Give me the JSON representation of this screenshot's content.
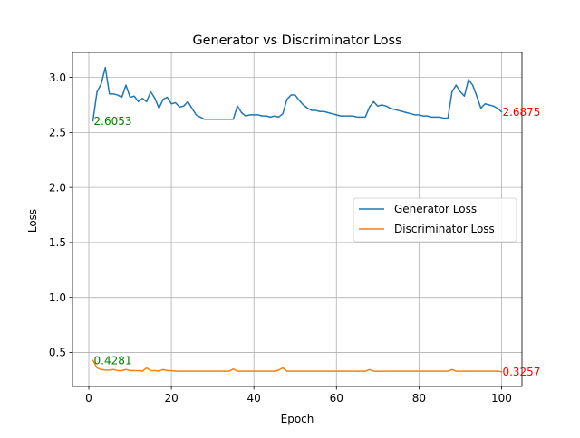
{
  "chart_data": {
    "type": "line",
    "title": "Generator vs Discriminator Loss",
    "xlabel": "Epoch",
    "ylabel": "Loss",
    "xlim": [
      -3.95,
      104.95
    ],
    "ylim": [
      0.191,
      3.227
    ],
    "xticks": [
      0,
      20,
      40,
      60,
      80,
      100
    ],
    "yticks": [
      0.5,
      1.0,
      1.5,
      2.0,
      2.5,
      3.0
    ],
    "xtick_labels": [
      "0",
      "20",
      "40",
      "60",
      "80",
      "100"
    ],
    "ytick_labels": [
      "0.5",
      "1.0",
      "1.5",
      "2.0",
      "2.5",
      "3.0"
    ],
    "grid": true,
    "legend_position": "center-right",
    "x": [
      1,
      2,
      3,
      4,
      5,
      6,
      7,
      8,
      9,
      10,
      11,
      12,
      13,
      14,
      15,
      16,
      17,
      18,
      19,
      20,
      21,
      22,
      23,
      24,
      25,
      26,
      27,
      28,
      29,
      30,
      31,
      32,
      33,
      34,
      35,
      36,
      37,
      38,
      39,
      40,
      41,
      42,
      43,
      44,
      45,
      46,
      47,
      48,
      49,
      50,
      51,
      52,
      53,
      54,
      55,
      56,
      57,
      58,
      59,
      60,
      61,
      62,
      63,
      64,
      65,
      66,
      67,
      68,
      69,
      70,
      71,
      72,
      73,
      74,
      75,
      76,
      77,
      78,
      79,
      80,
      81,
      82,
      83,
      84,
      85,
      86,
      87,
      88,
      89,
      90,
      91,
      92,
      93,
      94,
      95,
      96,
      97,
      98,
      99,
      100
    ],
    "series": [
      {
        "name": "Generator Loss",
        "color": "#1f77b4",
        "values": [
          2.6053,
          2.87,
          2.94,
          3.09,
          2.85,
          2.85,
          2.84,
          2.82,
          2.93,
          2.82,
          2.83,
          2.78,
          2.81,
          2.78,
          2.87,
          2.81,
          2.72,
          2.8,
          2.82,
          2.76,
          2.77,
          2.73,
          2.74,
          2.78,
          2.72,
          2.66,
          2.64,
          2.62,
          2.62,
          2.62,
          2.62,
          2.62,
          2.62,
          2.62,
          2.62,
          2.74,
          2.68,
          2.65,
          2.66,
          2.66,
          2.66,
          2.65,
          2.65,
          2.64,
          2.65,
          2.64,
          2.67,
          2.8,
          2.84,
          2.84,
          2.79,
          2.75,
          2.72,
          2.7,
          2.7,
          2.69,
          2.69,
          2.68,
          2.67,
          2.66,
          2.65,
          2.65,
          2.65,
          2.65,
          2.64,
          2.64,
          2.64,
          2.73,
          2.78,
          2.74,
          2.75,
          2.74,
          2.72,
          2.71,
          2.7,
          2.69,
          2.68,
          2.67,
          2.66,
          2.66,
          2.65,
          2.65,
          2.64,
          2.64,
          2.64,
          2.63,
          2.63,
          2.87,
          2.93,
          2.87,
          2.83,
          2.98,
          2.93,
          2.83,
          2.72,
          2.76,
          2.75,
          2.74,
          2.72,
          2.6875
        ]
      },
      {
        "name": "Discriminator Loss",
        "color": "#ff7f0e",
        "values": [
          0.4281,
          0.36,
          0.345,
          0.34,
          0.34,
          0.345,
          0.335,
          0.335,
          0.345,
          0.335,
          0.335,
          0.335,
          0.33,
          0.36,
          0.335,
          0.335,
          0.33,
          0.345,
          0.335,
          0.335,
          0.33,
          0.33,
          0.33,
          0.33,
          0.33,
          0.33,
          0.33,
          0.33,
          0.33,
          0.33,
          0.33,
          0.33,
          0.33,
          0.33,
          0.35,
          0.33,
          0.33,
          0.33,
          0.33,
          0.33,
          0.33,
          0.33,
          0.33,
          0.33,
          0.33,
          0.34,
          0.36,
          0.33,
          0.33,
          0.33,
          0.33,
          0.33,
          0.33,
          0.33,
          0.33,
          0.33,
          0.33,
          0.33,
          0.33,
          0.33,
          0.33,
          0.33,
          0.33,
          0.33,
          0.33,
          0.33,
          0.33,
          0.345,
          0.33,
          0.33,
          0.33,
          0.33,
          0.33,
          0.33,
          0.33,
          0.33,
          0.33,
          0.33,
          0.33,
          0.33,
          0.33,
          0.33,
          0.33,
          0.33,
          0.33,
          0.33,
          0.33,
          0.345,
          0.33,
          0.33,
          0.33,
          0.33,
          0.33,
          0.33,
          0.33,
          0.33,
          0.33,
          0.33,
          0.33,
          0.3257
        ]
      }
    ],
    "annotations": [
      {
        "text": "2.6053",
        "x": 1,
        "y": 2.6053,
        "color": "#008000",
        "series": 0
      },
      {
        "text": "2.6875",
        "x": 100,
        "y": 2.6875,
        "color": "#ff0000",
        "series": 0
      },
      {
        "text": "0.4281",
        "x": 1,
        "y": 0.4281,
        "color": "#008000",
        "series": 1
      },
      {
        "text": "0.3257",
        "x": 100,
        "y": 0.3257,
        "color": "#ff0000",
        "series": 1
      }
    ]
  }
}
